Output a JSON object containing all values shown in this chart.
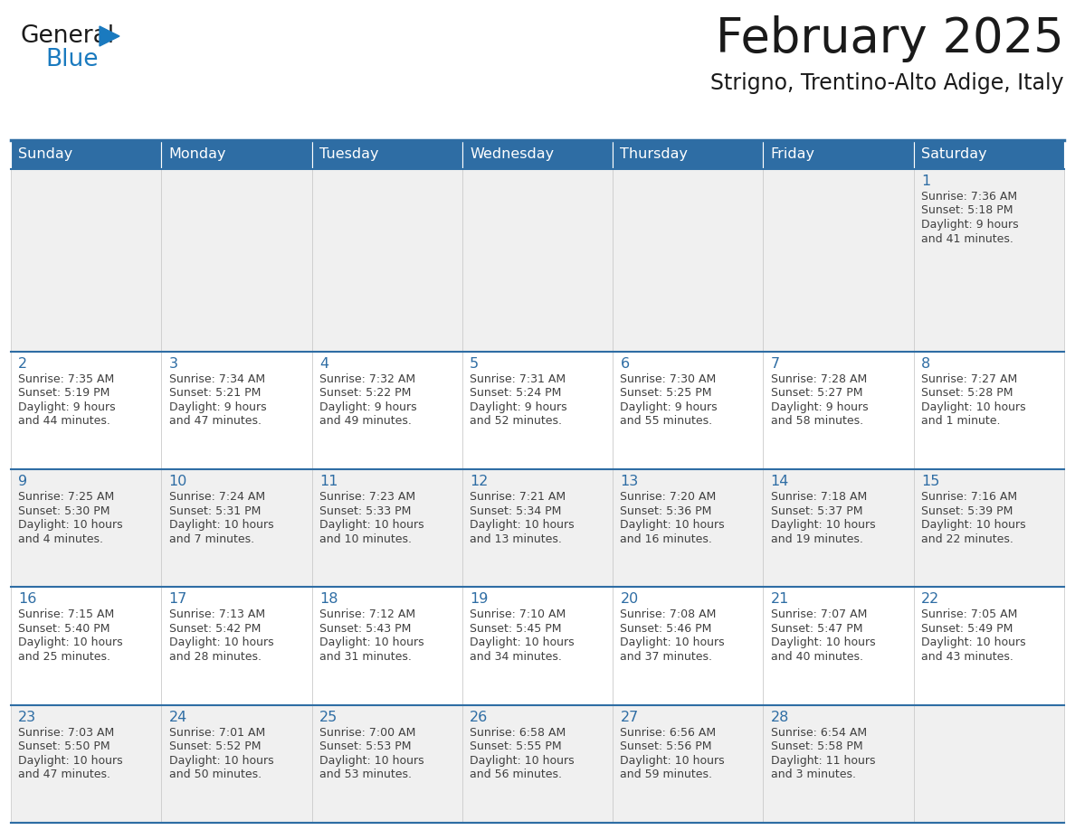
{
  "title": "February 2025",
  "subtitle": "Strigno, Trentino-Alto Adige, Italy",
  "days_of_week": [
    "Sunday",
    "Monday",
    "Tuesday",
    "Wednesday",
    "Thursday",
    "Friday",
    "Saturday"
  ],
  "header_bg": "#2E6DA4",
  "header_text": "#FFFFFF",
  "cell_bg_light": "#F0F0F0",
  "cell_bg_white": "#FFFFFF",
  "day_number_color": "#2E6DA4",
  "info_text_color": "#404040",
  "border_color": "#2E6DA4",
  "logo_general_color": "#1a1a1a",
  "logo_blue_color": "#1a7abf",
  "calendar_data": [
    [
      null,
      null,
      null,
      null,
      null,
      null,
      {
        "day": 1,
        "sunrise": "7:36 AM",
        "sunset": "5:18 PM",
        "daylight": "9 hours",
        "daylight2": "and 41 minutes."
      }
    ],
    [
      {
        "day": 2,
        "sunrise": "7:35 AM",
        "sunset": "5:19 PM",
        "daylight": "9 hours",
        "daylight2": "and 44 minutes."
      },
      {
        "day": 3,
        "sunrise": "7:34 AM",
        "sunset": "5:21 PM",
        "daylight": "9 hours",
        "daylight2": "and 47 minutes."
      },
      {
        "day": 4,
        "sunrise": "7:32 AM",
        "sunset": "5:22 PM",
        "daylight": "9 hours",
        "daylight2": "and 49 minutes."
      },
      {
        "day": 5,
        "sunrise": "7:31 AM",
        "sunset": "5:24 PM",
        "daylight": "9 hours",
        "daylight2": "and 52 minutes."
      },
      {
        "day": 6,
        "sunrise": "7:30 AM",
        "sunset": "5:25 PM",
        "daylight": "9 hours",
        "daylight2": "and 55 minutes."
      },
      {
        "day": 7,
        "sunrise": "7:28 AM",
        "sunset": "5:27 PM",
        "daylight": "9 hours",
        "daylight2": "and 58 minutes."
      },
      {
        "day": 8,
        "sunrise": "7:27 AM",
        "sunset": "5:28 PM",
        "daylight": "10 hours",
        "daylight2": "and 1 minute."
      }
    ],
    [
      {
        "day": 9,
        "sunrise": "7:25 AM",
        "sunset": "5:30 PM",
        "daylight": "10 hours",
        "daylight2": "and 4 minutes."
      },
      {
        "day": 10,
        "sunrise": "7:24 AM",
        "sunset": "5:31 PM",
        "daylight": "10 hours",
        "daylight2": "and 7 minutes."
      },
      {
        "day": 11,
        "sunrise": "7:23 AM",
        "sunset": "5:33 PM",
        "daylight": "10 hours",
        "daylight2": "and 10 minutes."
      },
      {
        "day": 12,
        "sunrise": "7:21 AM",
        "sunset": "5:34 PM",
        "daylight": "10 hours",
        "daylight2": "and 13 minutes."
      },
      {
        "day": 13,
        "sunrise": "7:20 AM",
        "sunset": "5:36 PM",
        "daylight": "10 hours",
        "daylight2": "and 16 minutes."
      },
      {
        "day": 14,
        "sunrise": "7:18 AM",
        "sunset": "5:37 PM",
        "daylight": "10 hours",
        "daylight2": "and 19 minutes."
      },
      {
        "day": 15,
        "sunrise": "7:16 AM",
        "sunset": "5:39 PM",
        "daylight": "10 hours",
        "daylight2": "and 22 minutes."
      }
    ],
    [
      {
        "day": 16,
        "sunrise": "7:15 AM",
        "sunset": "5:40 PM",
        "daylight": "10 hours",
        "daylight2": "and 25 minutes."
      },
      {
        "day": 17,
        "sunrise": "7:13 AM",
        "sunset": "5:42 PM",
        "daylight": "10 hours",
        "daylight2": "and 28 minutes."
      },
      {
        "day": 18,
        "sunrise": "7:12 AM",
        "sunset": "5:43 PM",
        "daylight": "10 hours",
        "daylight2": "and 31 minutes."
      },
      {
        "day": 19,
        "sunrise": "7:10 AM",
        "sunset": "5:45 PM",
        "daylight": "10 hours",
        "daylight2": "and 34 minutes."
      },
      {
        "day": 20,
        "sunrise": "7:08 AM",
        "sunset": "5:46 PM",
        "daylight": "10 hours",
        "daylight2": "and 37 minutes."
      },
      {
        "day": 21,
        "sunrise": "7:07 AM",
        "sunset": "5:47 PM",
        "daylight": "10 hours",
        "daylight2": "and 40 minutes."
      },
      {
        "day": 22,
        "sunrise": "7:05 AM",
        "sunset": "5:49 PM",
        "daylight": "10 hours",
        "daylight2": "and 43 minutes."
      }
    ],
    [
      {
        "day": 23,
        "sunrise": "7:03 AM",
        "sunset": "5:50 PM",
        "daylight": "10 hours",
        "daylight2": "and 47 minutes."
      },
      {
        "day": 24,
        "sunrise": "7:01 AM",
        "sunset": "5:52 PM",
        "daylight": "10 hours",
        "daylight2": "and 50 minutes."
      },
      {
        "day": 25,
        "sunrise": "7:00 AM",
        "sunset": "5:53 PM",
        "daylight": "10 hours",
        "daylight2": "and 53 minutes."
      },
      {
        "day": 26,
        "sunrise": "6:58 AM",
        "sunset": "5:55 PM",
        "daylight": "10 hours",
        "daylight2": "and 56 minutes."
      },
      {
        "day": 27,
        "sunrise": "6:56 AM",
        "sunset": "5:56 PM",
        "daylight": "10 hours",
        "daylight2": "and 59 minutes."
      },
      {
        "day": 28,
        "sunrise": "6:54 AM",
        "sunset": "5:58 PM",
        "daylight": "11 hours",
        "daylight2": "and 3 minutes."
      },
      null
    ]
  ]
}
